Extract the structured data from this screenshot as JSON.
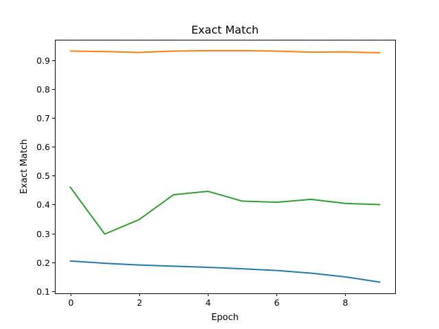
{
  "chart_data": {
    "type": "line",
    "title": "Exact Match",
    "xlabel": "Epoch",
    "ylabel": "Exact Match",
    "xlim": [
      -0.45,
      9.45
    ],
    "ylim": [
      0.093,
      0.97
    ],
    "xticks": [
      0,
      2,
      4,
      6,
      8
    ],
    "yticks": [
      0.1,
      0.2,
      0.3,
      0.4,
      0.5,
      0.6,
      0.7,
      0.8,
      0.9
    ],
    "grid": false,
    "x": [
      0,
      1,
      2,
      3,
      4,
      5,
      6,
      7,
      8,
      9
    ],
    "series": [
      {
        "color": "#1f77b4",
        "values": [
          0.205,
          0.197,
          0.191,
          0.187,
          0.183,
          0.178,
          0.172,
          0.163,
          0.15,
          0.132
        ]
      },
      {
        "color": "#ff7f0e",
        "values": [
          0.931,
          0.929,
          0.926,
          0.931,
          0.932,
          0.932,
          0.931,
          0.927,
          0.928,
          0.925
        ]
      },
      {
        "color": "#2ca02c",
        "values": [
          0.46,
          0.298,
          0.348,
          0.434,
          0.446,
          0.412,
          0.408,
          0.418,
          0.404,
          0.4
        ]
      }
    ]
  }
}
